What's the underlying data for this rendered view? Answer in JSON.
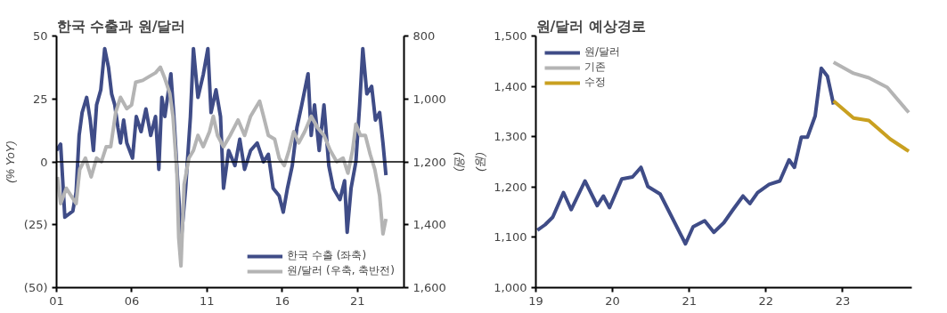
{
  "chart_data": [
    {
      "type": "line",
      "title": "한국 수출과 원/달러",
      "ylabel": "(% YoY)",
      "y2label": "(원)",
      "legend": "bottom right",
      "xlim": [
        2001,
        2024.1
      ],
      "xticks": [
        {
          "value": 2001,
          "label": "01"
        },
        {
          "value": 2006,
          "label": "06"
        },
        {
          "value": 2011,
          "label": "11"
        },
        {
          "value": 2016,
          "label": "16"
        },
        {
          "value": 2021,
          "label": "21"
        }
      ],
      "ylim": [
        -50,
        50
      ],
      "yticks": [
        {
          "value": -50,
          "label": "(50)"
        },
        {
          "value": -25,
          "label": "(25)"
        },
        0,
        25,
        50
      ],
      "y2lim": [
        1600,
        800
      ],
      "y2ticks": [
        {
          "value": 1600,
          "label": "1,600"
        },
        {
          "value": 1400,
          "label": "1,400"
        },
        {
          "value": 1200,
          "label": "1,200"
        },
        {
          "value": 1000,
          "label": "1,000"
        },
        800
      ],
      "ref_lines": [
        {
          "axis": "y",
          "value": 0,
          "color": "#000000"
        }
      ],
      "series": [
        {
          "name": "한국 수출 (좌축)",
          "color": "#3f4c87",
          "x": [
            2001.0,
            2001.27,
            2001.55,
            2002.08,
            2002.3,
            2002.5,
            2002.7,
            2003.0,
            2003.24,
            2003.45,
            2003.66,
            2003.94,
            2004.2,
            2004.45,
            2004.66,
            2004.87,
            2005.08,
            2005.25,
            2005.46,
            2005.67,
            2006.05,
            2006.3,
            2006.62,
            2006.94,
            2007.26,
            2007.58,
            2007.8,
            2008.0,
            2008.2,
            2008.6,
            2008.8,
            2009.05,
            2009.3,
            2009.58,
            2009.9,
            2010.1,
            2010.4,
            2010.75,
            2011.06,
            2011.27,
            2011.6,
            2011.9,
            2012.1,
            2012.44,
            2012.86,
            2013.18,
            2013.5,
            2013.9,
            2014.34,
            2014.76,
            2015.08,
            2015.4,
            2015.8,
            2016.07,
            2016.35,
            2016.67,
            2016.98,
            2017.3,
            2017.72,
            2017.93,
            2018.15,
            2018.46,
            2018.78,
            2019.1,
            2019.4,
            2019.84,
            2020.15,
            2020.32,
            2020.58,
            2020.9,
            2021.15,
            2021.36,
            2021.63,
            2021.95,
            2022.2,
            2022.48,
            2022.7,
            2022.9
          ],
          "values": [
            4.5,
            7,
            -22,
            -19.6,
            -12,
            10.5,
            19.6,
            25.6,
            16.6,
            4.5,
            22.6,
            28.6,
            45,
            37.6,
            27,
            22.6,
            13.6,
            7.5,
            16.6,
            7.5,
            1.5,
            18,
            12,
            21,
            10.5,
            18,
            -3,
            25.6,
            18,
            35,
            18,
            -7.5,
            -30,
            -10.5,
            18,
            45,
            25.6,
            34.6,
            45,
            19.6,
            28.6,
            18,
            -10.5,
            4.5,
            -1.5,
            9,
            -3,
            4.5,
            7.5,
            0,
            3,
            -10.5,
            -13.5,
            -20,
            -10.5,
            -1.5,
            13.6,
            22.6,
            35,
            10.5,
            22.6,
            4.5,
            22.6,
            -1.5,
            -10.5,
            -15,
            -7.5,
            -28,
            -10.5,
            0,
            22.6,
            45,
            27,
            30,
            16.6,
            19.6,
            7.5,
            -5.3
          ]
        },
        {
          "name": "원/달러 (우축, 축반전)",
          "color": "#b4b4b4",
          "axis": "y2",
          "x": [
            2001.06,
            2001.27,
            2001.65,
            2001.97,
            2002.3,
            2002.54,
            2002.92,
            2003.3,
            2003.66,
            2003.98,
            2004.3,
            2004.6,
            2004.93,
            2005.25,
            2005.67,
            2005.99,
            2006.26,
            2006.73,
            2007.15,
            2007.58,
            2007.9,
            2008.2,
            2008.53,
            2008.74,
            2009.0,
            2009.12,
            2009.27,
            2009.48,
            2009.8,
            2010.1,
            2010.4,
            2010.75,
            2011.17,
            2011.42,
            2011.7,
            2012.1,
            2012.54,
            2013.07,
            2013.5,
            2013.9,
            2014.5,
            2014.76,
            2015.08,
            2015.5,
            2015.8,
            2016.14,
            2016.45,
            2016.77,
            2017.1,
            2017.5,
            2017.93,
            2018.36,
            2018.78,
            2019.2,
            2019.63,
            2020.05,
            2020.37,
            2020.68,
            2020.9,
            2021.2,
            2021.53,
            2021.85,
            2022.16,
            2022.48,
            2022.7,
            2022.9
          ],
          "values": [
            1248,
            1333,
            1284,
            1308,
            1333,
            1224,
            1188,
            1248,
            1188,
            1200,
            1152,
            1152,
            1043,
            995,
            1031,
            1019,
            947,
            941,
            929,
            917,
            899,
            935,
            983,
            1055,
            1236,
            1441,
            1531,
            1272,
            1188,
            1164,
            1116,
            1152,
            1104,
            1055,
            1116,
            1152,
            1116,
            1067,
            1116,
            1055,
            1007,
            1055,
            1116,
            1128,
            1188,
            1212,
            1164,
            1104,
            1140,
            1104,
            1055,
            1092,
            1116,
            1164,
            1200,
            1188,
            1236,
            1164,
            1080,
            1116,
            1116,
            1176,
            1224,
            1308,
            1429,
            1381
          ]
        }
      ]
    },
    {
      "type": "line",
      "title": "원/달러 예상경로",
      "ylabel": "(원)",
      "legend": "top left",
      "xlim": [
        2019,
        2023.9
      ],
      "xticks": [
        {
          "value": 2019,
          "label": "19"
        },
        {
          "value": 2020,
          "label": "20"
        },
        {
          "value": 2021,
          "label": "21"
        },
        {
          "value": 2022,
          "label": "22"
        },
        {
          "value": 2023,
          "label": "23"
        }
      ],
      "ylim": [
        1000,
        1500
      ],
      "yticks": [
        {
          "value": 1000,
          "label": "1,000"
        },
        {
          "value": 1100,
          "label": "1,100"
        },
        {
          "value": 1200,
          "label": "1,200"
        },
        {
          "value": 1300,
          "label": "1,300"
        },
        {
          "value": 1400,
          "label": "1,400"
        },
        {
          "value": 1500,
          "label": "1,500"
        }
      ],
      "series": [
        {
          "name": "원/달러",
          "color": "#3f4c87",
          "x": [
            2019.02,
            2019.12,
            2019.22,
            2019.36,
            2019.46,
            2019.64,
            2019.8,
            2019.88,
            2019.96,
            2020.12,
            2020.26,
            2020.37,
            2020.46,
            2020.62,
            2020.76,
            2020.95,
            2021.05,
            2021.2,
            2021.32,
            2021.45,
            2021.57,
            2021.7,
            2021.79,
            2021.89,
            2022.04,
            2022.18,
            2022.3,
            2022.37,
            2022.46,
            2022.54,
            2022.64,
            2022.72,
            2022.8,
            2022.88
          ],
          "values": [
            1114,
            1125,
            1140,
            1189,
            1155,
            1212,
            1163,
            1182,
            1159,
            1216,
            1220,
            1239,
            1201,
            1186,
            1144,
            1087,
            1121,
            1133,
            1110,
            1129,
            1155,
            1182,
            1167,
            1189,
            1205,
            1212,
            1254,
            1239,
            1299,
            1299,
            1341,
            1436,
            1420,
            1364
          ]
        },
        {
          "name": "기존",
          "color": "#b4b4b4",
          "x": [
            2022.88,
            2023.14,
            2023.34,
            2023.58,
            2023.86
          ],
          "values": [
            1448,
            1426,
            1417,
            1398,
            1348
          ]
        },
        {
          "name": "수정",
          "color": "#c9a020",
          "x": [
            2022.88,
            2023.14,
            2023.34,
            2023.62,
            2023.86
          ],
          "values": [
            1371,
            1337,
            1332,
            1295,
            1271
          ]
        }
      ]
    }
  ]
}
